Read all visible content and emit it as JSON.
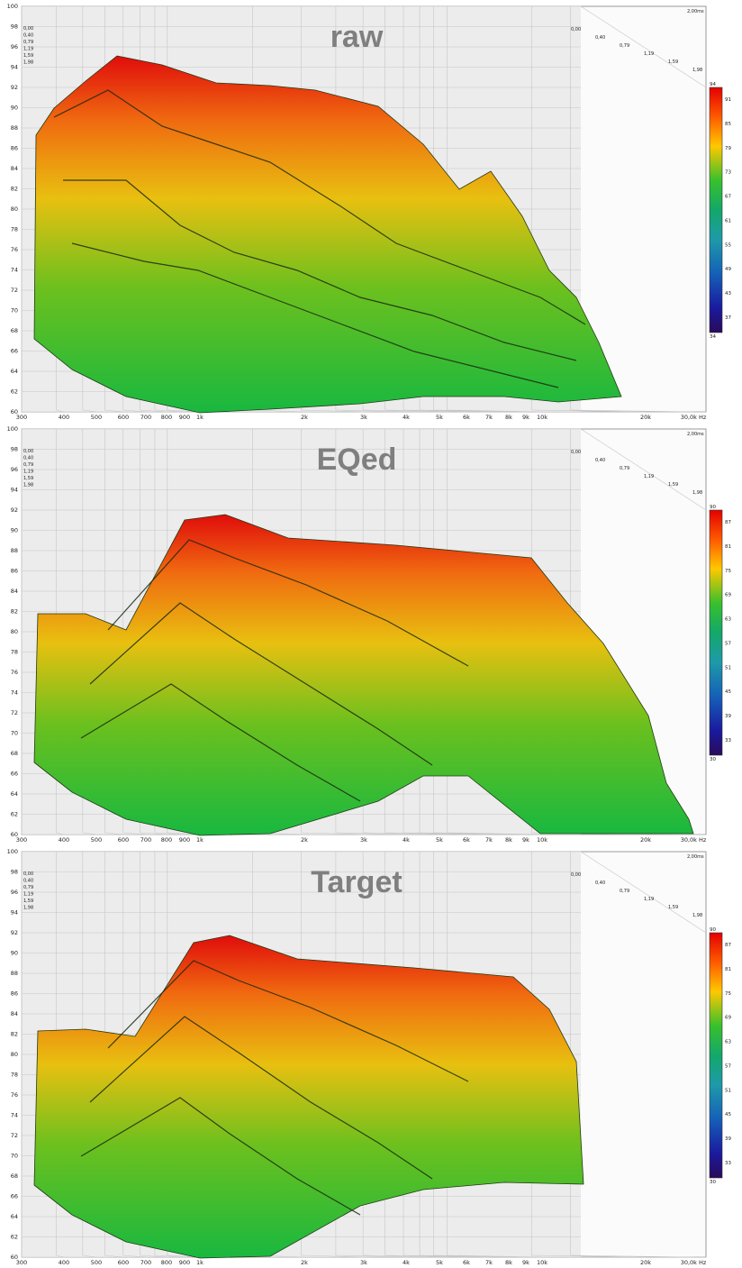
{
  "chart_data": [
    {
      "type": "waterfall",
      "title": "raw",
      "ylim": [
        60,
        100
      ],
      "y_ticks": [
        "60",
        "62",
        "64",
        "66",
        "68",
        "70",
        "72",
        "74",
        "76",
        "78",
        "80",
        "82",
        "84",
        "86",
        "88",
        "90",
        "92",
        "94",
        "96",
        "98",
        "100"
      ],
      "x_ticks": [
        "300",
        "400",
        "500",
        "600",
        "700",
        "800",
        "900",
        "1k",
        "2k",
        "3k",
        "4k",
        "5k",
        "6k",
        "7k",
        "8k",
        "9k",
        "10k",
        "20k",
        "30,0k Hz"
      ],
      "time_slices": [
        "0,00",
        "0,40",
        "0,79",
        "1,19",
        "1,59",
        "1,98"
      ],
      "time_corner_label": "2,00ms",
      "colorbar": {
        "ticks": [
          "94",
          "91",
          "85",
          "79",
          "73",
          "67",
          "61",
          "55",
          "49",
          "43",
          "37",
          "34"
        ]
      },
      "grid": true
    },
    {
      "type": "waterfall",
      "title": "EQed",
      "ylim": [
        60,
        100
      ],
      "y_ticks": [
        "60",
        "62",
        "64",
        "66",
        "68",
        "70",
        "72",
        "74",
        "76",
        "78",
        "80",
        "82",
        "84",
        "86",
        "88",
        "90",
        "92",
        "94",
        "96",
        "98",
        "100"
      ],
      "x_ticks": [
        "300",
        "400",
        "500",
        "600",
        "700",
        "800",
        "900",
        "1k",
        "2k",
        "3k",
        "4k",
        "5k",
        "6k",
        "7k",
        "8k",
        "9k",
        "10k",
        "20k",
        "30,0k Hz"
      ],
      "time_slices": [
        "0,00",
        "0,40",
        "0,79",
        "1,19",
        "1,59",
        "1,98"
      ],
      "time_corner_label": "2,00ms",
      "colorbar": {
        "ticks": [
          "90",
          "87",
          "81",
          "75",
          "69",
          "63",
          "57",
          "51",
          "45",
          "39",
          "33",
          "30"
        ]
      },
      "grid": true
    },
    {
      "type": "waterfall",
      "title": "Target",
      "ylim": [
        60,
        100
      ],
      "y_ticks": [
        "60",
        "62",
        "64",
        "66",
        "68",
        "70",
        "72",
        "74",
        "76",
        "78",
        "80",
        "82",
        "84",
        "86",
        "88",
        "90",
        "92",
        "94",
        "96",
        "98",
        "100"
      ],
      "x_ticks": [
        "300",
        "400",
        "500",
        "600",
        "700",
        "800",
        "900",
        "1k",
        "2k",
        "3k",
        "4k",
        "5k",
        "6k",
        "7k",
        "8k",
        "9k",
        "10k",
        "20k",
        "30,0k Hz"
      ],
      "time_slices": [
        "0,00",
        "0,40",
        "0,79",
        "1,19",
        "1,59",
        "1,98"
      ],
      "time_corner_label": "2,00ms",
      "colorbar": {
        "ticks": [
          "90",
          "87",
          "81",
          "75",
          "69",
          "63",
          "57",
          "51",
          "45",
          "39",
          "33",
          "30"
        ]
      },
      "grid": true
    }
  ]
}
